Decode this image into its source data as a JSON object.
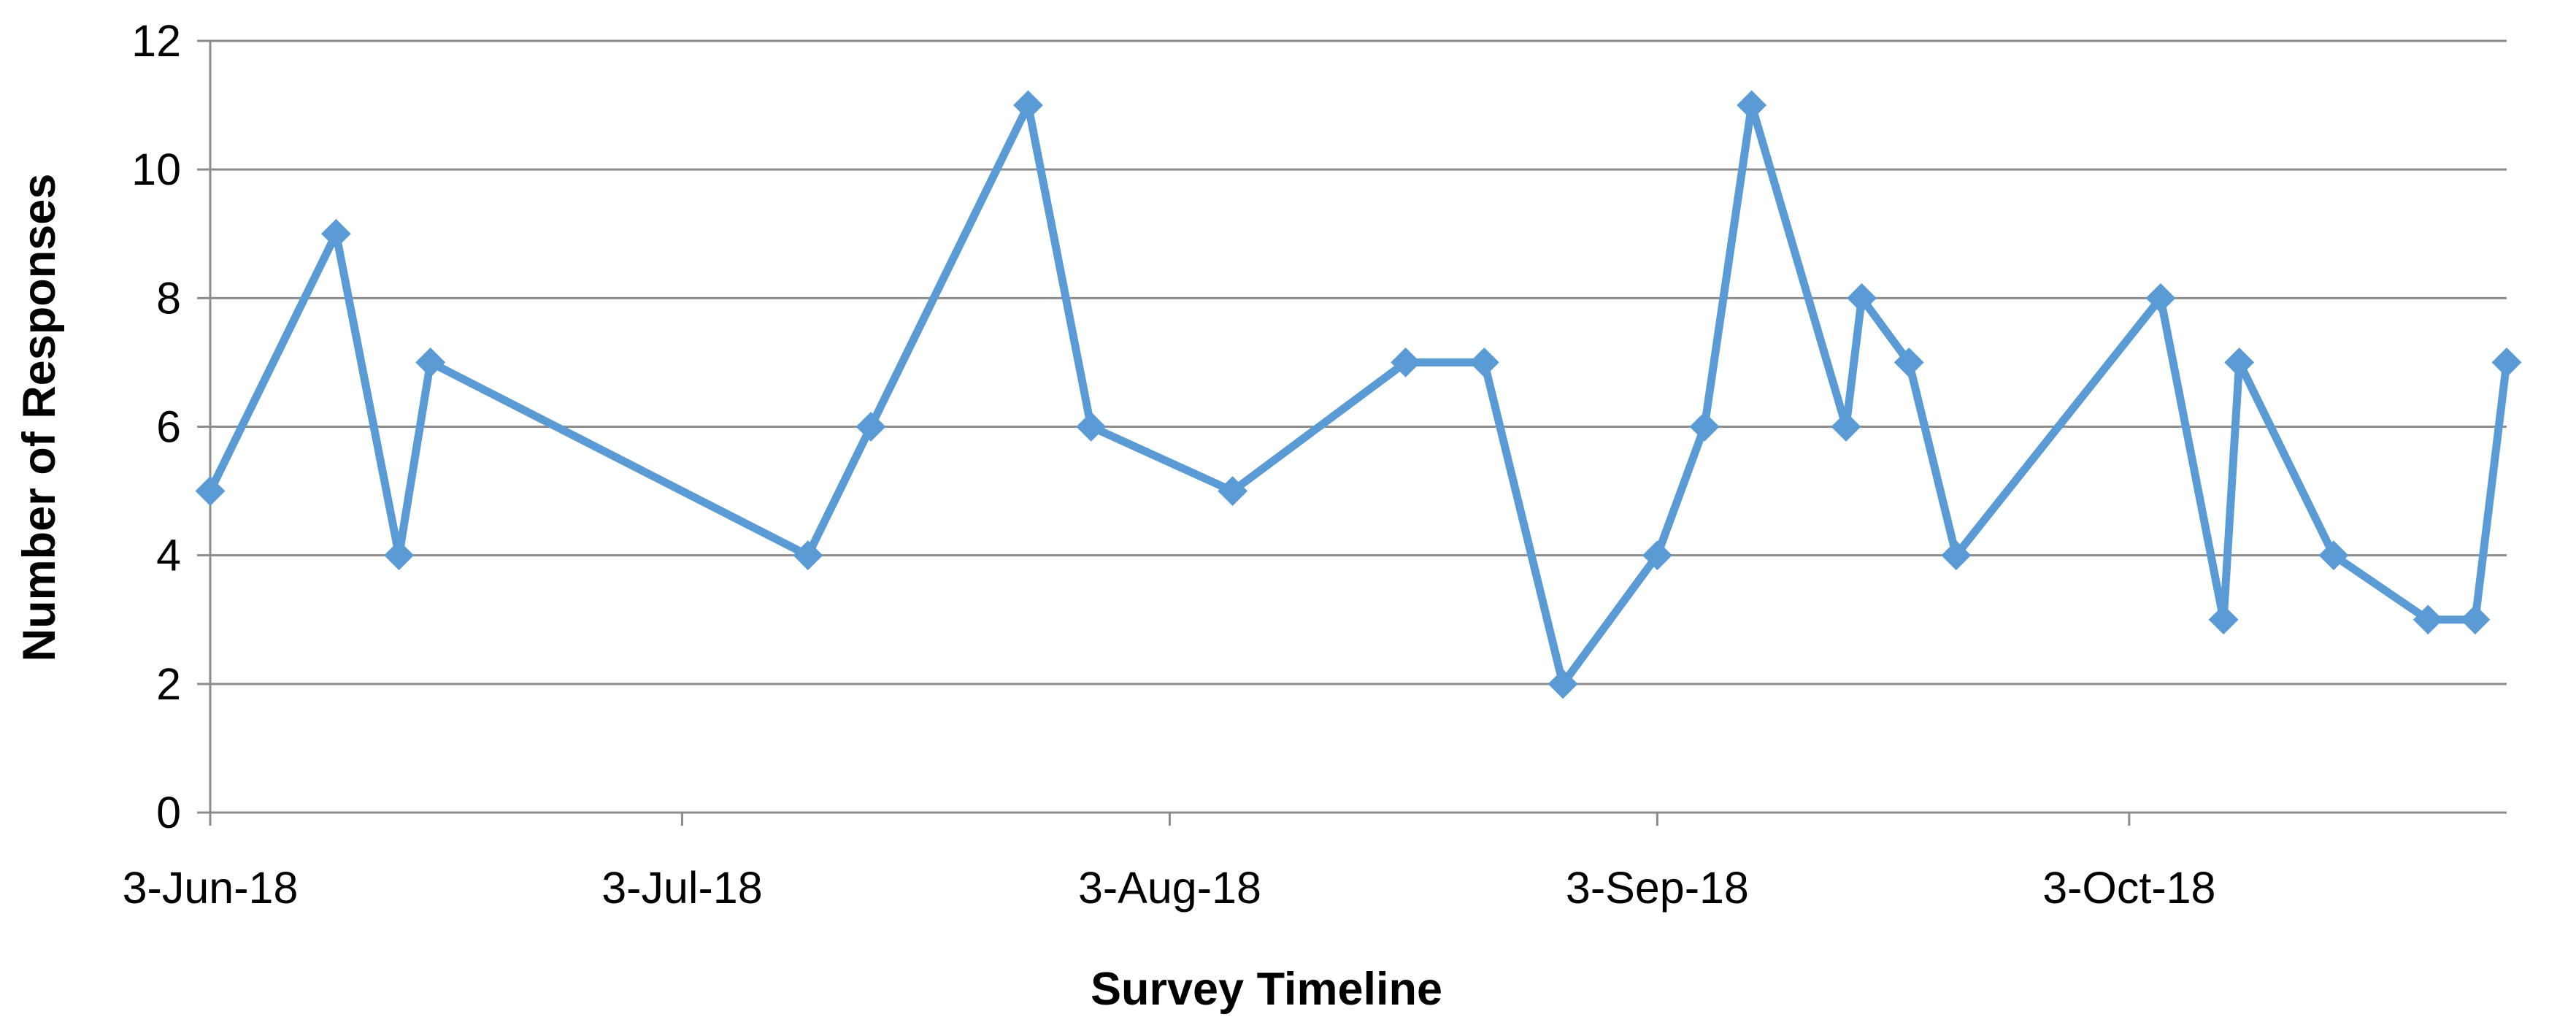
{
  "chart_data": {
    "type": "line",
    "xlabel": "Survey Timeline",
    "ylabel": "Number of Responses",
    "ylim": [
      0,
      12
    ],
    "yticks": [
      0,
      2,
      4,
      6,
      8,
      10,
      12
    ],
    "xlim": [
      "2018-06-03",
      "2018-10-27"
    ],
    "xticks": [
      {
        "date": "2018-06-03",
        "label": "3-Jun-18"
      },
      {
        "date": "2018-07-03",
        "label": "3-Jul-18"
      },
      {
        "date": "2018-08-03",
        "label": "3-Aug-18"
      },
      {
        "date": "2018-09-03",
        "label": "3-Sep-18"
      },
      {
        "date": "2018-10-03",
        "label": "3-Oct-18"
      }
    ],
    "grid": true,
    "legend": "none",
    "series": [
      {
        "color": "#5b9bd5",
        "marker": "diamond",
        "points": [
          {
            "x": "2018-06-03",
            "y": 5
          },
          {
            "x": "2018-06-11",
            "y": 9
          },
          {
            "x": "2018-06-15",
            "y": 4
          },
          {
            "x": "2018-06-17",
            "y": 7
          },
          {
            "x": "2018-07-11",
            "y": 4
          },
          {
            "x": "2018-07-15",
            "y": 6
          },
          {
            "x": "2018-07-25",
            "y": 11
          },
          {
            "x": "2018-07-29",
            "y": 6
          },
          {
            "x": "2018-08-07",
            "y": 5
          },
          {
            "x": "2018-08-18",
            "y": 7
          },
          {
            "x": "2018-08-23",
            "y": 7
          },
          {
            "x": "2018-08-28",
            "y": 2
          },
          {
            "x": "2018-09-03",
            "y": 4
          },
          {
            "x": "2018-09-06",
            "y": 6
          },
          {
            "x": "2018-09-09",
            "y": 11
          },
          {
            "x": "2018-09-15",
            "y": 6
          },
          {
            "x": "2018-09-16",
            "y": 8
          },
          {
            "x": "2018-09-19",
            "y": 7
          },
          {
            "x": "2018-09-22",
            "y": 4
          },
          {
            "x": "2018-10-05",
            "y": 8
          },
          {
            "x": "2018-10-09",
            "y": 3
          },
          {
            "x": "2018-10-10",
            "y": 7
          },
          {
            "x": "2018-10-16",
            "y": 4
          },
          {
            "x": "2018-10-22",
            "y": 3
          },
          {
            "x": "2018-10-25",
            "y": 3
          },
          {
            "x": "2018-10-27",
            "y": 7
          }
        ]
      }
    ]
  }
}
